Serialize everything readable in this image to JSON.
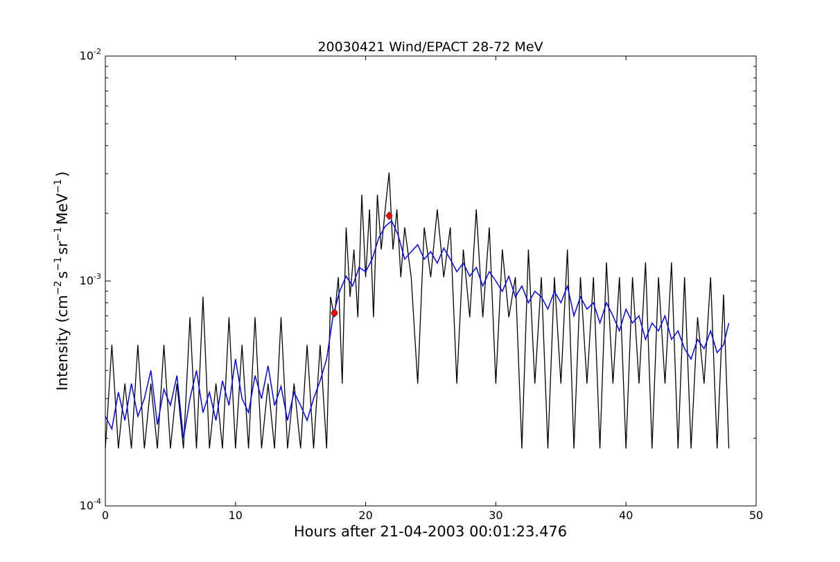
{
  "chart_data": {
    "type": "line",
    "title": "20030421 Wind/EPACT 28-72 MeV",
    "xlabel": "Hours after 21-04-2003 00:01:23.476",
    "ylabel": {
      "prefix": "Intensity (cm",
      "sup1": "−2",
      "mid1": "s",
      "sup2": "−1",
      "mid2": "sr",
      "sup3": "−1",
      "mid3": "MeV",
      "sup4": "−1",
      "suffix": ")"
    },
    "xlim": [
      0,
      50
    ],
    "ylim": [
      0.0001,
      0.01
    ],
    "yscale": "log",
    "grid": false,
    "x_ticks": [
      0,
      10,
      20,
      30,
      40,
      50
    ],
    "x_tick_labels": [
      "0",
      "10",
      "20",
      "30",
      "40",
      "50"
    ],
    "y_ticks": [
      0.0001,
      0.001,
      0.01
    ],
    "y_tick_labels": [
      {
        "base": "10",
        "exp": "-4"
      },
      {
        "base": "10",
        "exp": "-3"
      },
      {
        "base": "10",
        "exp": "-2"
      }
    ],
    "series": [
      {
        "color": "#000000",
        "x": [
          0.0,
          0.5,
          1.0,
          1.5,
          2.0,
          2.5,
          3.0,
          3.5,
          4.0,
          4.5,
          5.0,
          5.5,
          6.0,
          6.5,
          7.0,
          7.5,
          8.0,
          8.5,
          9.0,
          9.5,
          10.0,
          10.5,
          11.0,
          11.5,
          12.0,
          12.5,
          13.0,
          13.5,
          14.0,
          14.5,
          15.0,
          15.5,
          16.0,
          16.5,
          17.0,
          17.3,
          17.6,
          17.9,
          18.2,
          18.5,
          18.8,
          19.1,
          19.4,
          19.7,
          20.0,
          20.3,
          20.6,
          20.9,
          21.2,
          21.5,
          21.8,
          22.1,
          22.4,
          22.7,
          23.0,
          23.5,
          24.0,
          24.5,
          25.0,
          25.5,
          26.0,
          26.5,
          27.0,
          27.5,
          28.0,
          28.5,
          29.0,
          29.5,
          30.0,
          30.5,
          31.0,
          31.5,
          32.0,
          32.5,
          33.0,
          33.5,
          34.0,
          34.5,
          35.0,
          35.5,
          36.0,
          36.5,
          37.0,
          37.5,
          38.0,
          38.5,
          39.0,
          39.5,
          40.0,
          40.5,
          41.0,
          41.5,
          42.0,
          42.5,
          43.0,
          43.5,
          44.0,
          44.5,
          45.0,
          45.5,
          46.0,
          46.5,
          47.0,
          47.5,
          47.9
        ],
        "y": [
          0.00018,
          0.00052,
          0.00018,
          0.00035,
          0.00018,
          0.00052,
          0.00018,
          0.00035,
          0.00018,
          0.00052,
          0.00018,
          0.00035,
          0.00018,
          0.00069,
          0.00018,
          0.00085,
          0.00018,
          0.00035,
          0.00018,
          0.00069,
          0.00018,
          0.00052,
          0.00018,
          0.00069,
          0.00018,
          0.00035,
          0.00018,
          0.00069,
          0.00018,
          0.00035,
          0.00018,
          0.00052,
          0.00018,
          0.00052,
          0.00018,
          0.00085,
          0.00069,
          0.00104,
          0.00035,
          0.00173,
          0.00085,
          0.00138,
          0.00069,
          0.00242,
          0.00104,
          0.00208,
          0.00069,
          0.00242,
          0.00138,
          0.00208,
          0.00304,
          0.00138,
          0.00208,
          0.00104,
          0.00173,
          0.00104,
          0.00035,
          0.00173,
          0.00104,
          0.00208,
          0.00104,
          0.00173,
          0.00035,
          0.00138,
          0.00069,
          0.00208,
          0.00069,
          0.00173,
          0.00035,
          0.00138,
          0.00069,
          0.00104,
          0.00018,
          0.00138,
          0.00035,
          0.00104,
          0.00018,
          0.00104,
          0.00035,
          0.00138,
          0.00018,
          0.00104,
          0.00035,
          0.00104,
          0.00018,
          0.00121,
          0.00035,
          0.00104,
          0.00018,
          0.00104,
          0.00035,
          0.00121,
          0.00018,
          0.00104,
          0.00035,
          0.00121,
          0.00018,
          0.00104,
          0.00018,
          0.00069,
          0.00035,
          0.00104,
          0.00018,
          0.00087,
          0.00018
        ]
      },
      {
        "color": "#0000ff",
        "x": [
          0.0,
          0.5,
          1.0,
          1.5,
          2.0,
          2.5,
          3.0,
          3.5,
          4.0,
          4.5,
          5.0,
          5.5,
          6.0,
          6.5,
          7.0,
          7.5,
          8.0,
          8.5,
          9.0,
          9.5,
          10.0,
          10.5,
          11.0,
          11.5,
          12.0,
          12.5,
          13.0,
          13.5,
          14.0,
          14.5,
          15.0,
          15.5,
          16.0,
          16.5,
          17.0,
          17.5,
          18.0,
          18.5,
          19.0,
          19.5,
          20.0,
          20.5,
          21.0,
          21.5,
          22.0,
          22.5,
          23.0,
          23.5,
          24.0,
          24.5,
          25.0,
          25.5,
          26.0,
          26.5,
          27.0,
          27.5,
          28.0,
          28.5,
          29.0,
          29.5,
          30.0,
          30.5,
          31.0,
          31.5,
          32.0,
          32.5,
          33.0,
          33.5,
          34.0,
          34.5,
          35.0,
          35.5,
          36.0,
          36.5,
          37.0,
          37.5,
          38.0,
          38.5,
          39.0,
          39.5,
          40.0,
          40.5,
          41.0,
          41.5,
          42.0,
          42.5,
          43.0,
          43.5,
          44.0,
          44.5,
          45.0,
          45.5,
          46.0,
          46.5,
          47.0,
          47.5,
          47.9
        ],
        "y": [
          0.00025,
          0.00022,
          0.00032,
          0.00024,
          0.00035,
          0.00025,
          0.0003,
          0.0004,
          0.00023,
          0.00033,
          0.00028,
          0.00038,
          0.0002,
          0.0003,
          0.0004,
          0.00026,
          0.00032,
          0.00024,
          0.00036,
          0.00028,
          0.00045,
          0.0003,
          0.00026,
          0.00038,
          0.0003,
          0.00042,
          0.00028,
          0.00034,
          0.00024,
          0.00032,
          0.00028,
          0.00024,
          0.0003,
          0.00036,
          0.00045,
          0.0007,
          0.0009,
          0.00105,
          0.00095,
          0.00115,
          0.0011,
          0.00125,
          0.00155,
          0.00175,
          0.00185,
          0.0016,
          0.00125,
          0.00135,
          0.00145,
          0.00125,
          0.00135,
          0.0012,
          0.0014,
          0.00125,
          0.0011,
          0.0012,
          0.00105,
          0.00115,
          0.00095,
          0.0011,
          0.001,
          0.0009,
          0.00105,
          0.00085,
          0.00095,
          0.0008,
          0.0009,
          0.00085,
          0.00075,
          0.0009,
          0.0008,
          0.00095,
          0.0007,
          0.00085,
          0.00075,
          0.0008,
          0.00065,
          0.0008,
          0.0007,
          0.0006,
          0.00075,
          0.00065,
          0.0007,
          0.00055,
          0.00065,
          0.0006,
          0.0007,
          0.00055,
          0.0006,
          0.0005,
          0.00045,
          0.00055,
          0.0005,
          0.0006,
          0.00048,
          0.00052,
          0.00065
        ]
      }
    ],
    "markers": [
      {
        "shape": "circle",
        "color": "#ff0000",
        "x": 17.6,
        "y": 0.00072
      },
      {
        "shape": "diamond",
        "color": "#ff0000",
        "x": 21.8,
        "y": 0.00195
      }
    ]
  }
}
